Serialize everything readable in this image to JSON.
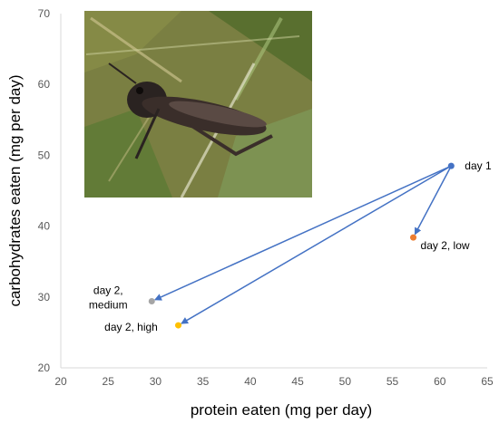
{
  "chart_data": {
    "type": "scatter",
    "xlabel": "protein eaten (mg per day)",
    "ylabel": "carbohydrates eaten (mg per day)",
    "xlim": [
      20,
      65
    ],
    "ylim": [
      20,
      70
    ],
    "x_ticks": [
      20,
      25,
      30,
      35,
      40,
      45,
      50,
      55,
      60,
      65
    ],
    "y_ticks": [
      20,
      30,
      40,
      50,
      60,
      70
    ],
    "grid": false,
    "points": [
      {
        "label": "day 1",
        "x": 61.2,
        "y": 48.5,
        "color": "#4472C4"
      },
      {
        "label": "day 2, low",
        "x": 57.2,
        "y": 38.4,
        "color": "#ED7D31"
      },
      {
        "label": "day 2, medium",
        "x": 29.6,
        "y": 29.4,
        "color": "#A5A5A5"
      },
      {
        "label": "day 2, high",
        "x": 32.4,
        "y": 26.0,
        "color": "#FFC000"
      }
    ],
    "arrows": [
      {
        "from": "day 1",
        "to": "day 2, low"
      },
      {
        "from": "day 1",
        "to": "day 2, medium"
      },
      {
        "from": "day 1",
        "to": "day 2, high"
      }
    ],
    "arrow_color": "#4472C4",
    "inset_photo": "grasshopper"
  }
}
